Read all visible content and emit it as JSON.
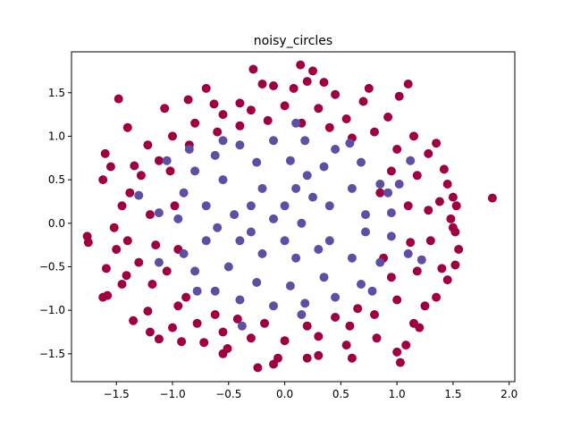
{
  "chart_data": {
    "type": "scatter",
    "title": "noisy_circles",
    "xlabel": "",
    "ylabel": "",
    "xlim": [
      -1.9,
      2.05
    ],
    "ylim": [
      -1.82,
      1.97
    ],
    "xticks": [
      -1.5,
      -1.0,
      -0.5,
      0.0,
      0.5,
      1.0,
      1.5,
      2.0
    ],
    "xtick_labels": [
      "−1.5",
      "−1.0",
      "−0.5",
      "0.0",
      "0.5",
      "1.0",
      "1.5",
      "2.0"
    ],
    "yticks": [
      -1.5,
      -1.0,
      -0.5,
      0.0,
      0.5,
      1.0,
      1.5
    ],
    "ytick_labels": [
      "−1.5",
      "−1.0",
      "−0.5",
      "0.0",
      "0.5",
      "1.0",
      "1.5"
    ],
    "grid": false,
    "legend": "none",
    "colors": {
      "outer": "#9e0142",
      "inner": "#5e4fa2"
    },
    "series": [
      {
        "class": "outer",
        "color": "#9e0142",
        "values": [
          [
            1.85,
            0.29
          ],
          [
            -1.76,
            -0.15
          ],
          [
            -1.75,
            -0.22
          ],
          [
            -1.62,
            0.5
          ],
          [
            -1.59,
            -0.52
          ],
          [
            -1.58,
            -0.83
          ],
          [
            -1.48,
            1.43
          ],
          [
            -1.41,
            -0.6
          ],
          [
            -1.34,
            0.66
          ],
          [
            -1.35,
            -1.12
          ],
          [
            -1.22,
            0.9
          ],
          [
            -1.22,
            -1.01
          ],
          [
            -1.12,
            -1.33
          ],
          [
            -1.07,
            1.32
          ],
          [
            -0.92,
            -1.36
          ],
          [
            -0.86,
            1.42
          ],
          [
            -0.72,
            -1.37
          ],
          [
            -0.63,
            1.37
          ],
          [
            -0.51,
            -1.44
          ],
          [
            -0.4,
            1.38
          ],
          [
            -0.28,
            1.77
          ],
          [
            -0.24,
            -1.66
          ],
          [
            -0.1,
            1.58
          ],
          [
            -0.06,
            -1.55
          ],
          [
            0.08,
            1.55
          ],
          [
            0.14,
            1.82
          ],
          [
            0.2,
            1.63
          ],
          [
            0.3,
            -1.52
          ],
          [
            0.45,
            1.48
          ],
          [
            0.55,
            -1.4
          ],
          [
            0.7,
            1.4
          ],
          [
            0.82,
            -1.32
          ],
          [
            0.92,
            1.22
          ],
          [
            1.0,
            -1.48
          ],
          [
            1.02,
            1.46
          ],
          [
            1.08,
            -1.4
          ],
          [
            1.1,
            1.6
          ],
          [
            1.03,
            -1.6
          ],
          [
            1.15,
            1.0
          ],
          [
            1.2,
            -1.2
          ],
          [
            1.28,
            0.8
          ],
          [
            1.35,
            -0.85
          ],
          [
            1.42,
            0.62
          ],
          [
            1.45,
            0.45
          ],
          [
            1.5,
            0.3
          ],
          [
            1.53,
            0.2
          ],
          [
            1.52,
            -0.1
          ],
          [
            1.55,
            -0.3
          ],
          [
            1.52,
            -0.48
          ],
          [
            1.48,
            0.05
          ],
          [
            1.4,
            -0.52
          ],
          [
            1.38,
            0.25
          ],
          [
            -1.5,
            -0.3
          ],
          [
            -1.45,
            0.2
          ],
          [
            -1.52,
            -0.05
          ],
          [
            -1.38,
            0.35
          ],
          [
            -1.4,
            -0.2
          ],
          [
            -1.3,
            -0.45
          ],
          [
            -1.28,
            0.55
          ],
          [
            -1.12,
            0.72
          ],
          [
            -1.18,
            -0.7
          ],
          [
            -1.0,
            1.0
          ],
          [
            -0.95,
            -0.95
          ],
          [
            -0.8,
            1.15
          ],
          [
            -0.78,
            -1.15
          ],
          [
            -0.55,
            1.25
          ],
          [
            -0.55,
            -1.25
          ],
          [
            -0.3,
            1.3
          ],
          [
            -0.3,
            -1.32
          ],
          [
            0.0,
            1.35
          ],
          [
            0.0,
            -1.35
          ],
          [
            0.3,
            1.32
          ],
          [
            0.3,
            -1.3
          ],
          [
            0.55,
            1.2
          ],
          [
            0.58,
            -1.18
          ],
          [
            0.8,
            1.05
          ],
          [
            0.8,
            -1.05
          ],
          [
            1.0,
            0.85
          ],
          [
            1.0,
            -0.88
          ],
          [
            1.18,
            0.55
          ],
          [
            1.18,
            -0.55
          ],
          [
            1.28,
            0.15
          ],
          [
            1.3,
            -0.2
          ],
          [
            -1.2,
            0.1
          ],
          [
            -1.15,
            -0.25
          ],
          [
            -1.02,
            0.6
          ],
          [
            -1.05,
            -0.55
          ],
          [
            -0.85,
            0.9
          ],
          [
            -0.88,
            -0.85
          ],
          [
            -0.6,
            1.05
          ],
          [
            -0.62,
            -1.05
          ],
          [
            -0.15,
            1.18
          ],
          [
            -0.18,
            -1.15
          ],
          [
            0.15,
            1.15
          ],
          [
            0.2,
            -1.18
          ],
          [
            0.6,
            0.98
          ],
          [
            0.65,
            -0.98
          ],
          [
            0.95,
            0.6
          ],
          [
            0.95,
            -0.62
          ],
          [
            1.1,
            0.2
          ],
          [
            1.12,
            -0.22
          ],
          [
            -0.98,
            0.2
          ],
          [
            -0.95,
            -0.3
          ],
          [
            0.85,
            0.35
          ],
          [
            0.88,
            -0.4
          ],
          [
            -0.4,
            1.12
          ],
          [
            0.4,
            1.1
          ],
          [
            -0.42,
            -1.1
          ],
          [
            0.45,
            -1.08
          ],
          [
            -1.4,
            1.1
          ],
          [
            -1.6,
            0.8
          ],
          [
            -1.55,
            0.65
          ],
          [
            -1.62,
            -0.85
          ],
          [
            -1.45,
            -0.7
          ],
          [
            1.5,
            -0.05
          ],
          [
            1.45,
            -0.65
          ],
          [
            1.25,
            -0.95
          ],
          [
            1.35,
            0.92
          ],
          [
            0.75,
            1.55
          ],
          [
            -0.7,
            1.55
          ],
          [
            -0.2,
            1.6
          ],
          [
            0.25,
            1.75
          ],
          [
            0.35,
            1.62
          ],
          [
            -0.1,
            -1.62
          ],
          [
            0.2,
            -1.55
          ],
          [
            0.6,
            -1.55
          ],
          [
            -0.55,
            -1.5
          ],
          [
            -1.0,
            -1.2
          ],
          [
            -1.2,
            -1.25
          ],
          [
            1.15,
            -1.15
          ]
        ]
      },
      {
        "class": "inner",
        "color": "#5e4fa2",
        "values": [
          [
            -0.95,
            0.05
          ],
          [
            -0.9,
            0.35
          ],
          [
            -0.9,
            -0.35
          ],
          [
            -0.8,
            0.6
          ],
          [
            -0.8,
            -0.55
          ],
          [
            -0.62,
            0.78
          ],
          [
            -0.62,
            -0.78
          ],
          [
            -0.4,
            0.9
          ],
          [
            -0.4,
            -0.88
          ],
          [
            -0.1,
            0.95
          ],
          [
            -0.1,
            -0.95
          ],
          [
            0.18,
            0.95
          ],
          [
            0.18,
            -0.92
          ],
          [
            0.45,
            0.85
          ],
          [
            0.45,
            -0.85
          ],
          [
            0.68,
            0.7
          ],
          [
            0.68,
            -0.7
          ],
          [
            0.85,
            0.45
          ],
          [
            0.85,
            -0.45
          ],
          [
            0.95,
            0.12
          ],
          [
            0.95,
            -0.15
          ],
          [
            -0.7,
            0.2
          ],
          [
            -0.7,
            -0.2
          ],
          [
            -0.55,
            0.5
          ],
          [
            -0.5,
            -0.5
          ],
          [
            -0.25,
            0.7
          ],
          [
            -0.25,
            -0.68
          ],
          [
            0.05,
            0.72
          ],
          [
            0.05,
            -0.72
          ],
          [
            0.35,
            0.65
          ],
          [
            0.35,
            -0.62
          ],
          [
            0.6,
            0.4
          ],
          [
            0.6,
            -0.4
          ],
          [
            0.72,
            0.1
          ],
          [
            0.72,
            -0.1
          ],
          [
            -0.45,
            0.1
          ],
          [
            -0.4,
            -0.2
          ],
          [
            -0.2,
            0.4
          ],
          [
            -0.2,
            -0.35
          ],
          [
            0.1,
            0.4
          ],
          [
            0.1,
            -0.4
          ],
          [
            0.4,
            0.2
          ],
          [
            0.4,
            -0.2
          ],
          [
            -0.1,
            0.05
          ],
          [
            0.15,
            0.0
          ],
          [
            0.0,
            0.2
          ],
          [
            0.0,
            -0.2
          ],
          [
            -1.3,
            0.32
          ],
          [
            -1.12,
            -0.45
          ],
          [
            -1.05,
            0.72
          ],
          [
            -0.55,
            0.95
          ],
          [
            -0.38,
            -1.18
          ],
          [
            0.1,
            1.15
          ],
          [
            0.15,
            -1.05
          ],
          [
            0.58,
            0.92
          ],
          [
            0.78,
            -0.78
          ],
          [
            1.02,
            0.45
          ],
          [
            1.12,
            0.72
          ],
          [
            1.1,
            -0.35
          ],
          [
            1.22,
            -0.42
          ],
          [
            -0.85,
            0.85
          ],
          [
            -0.78,
            -0.78
          ],
          [
            0.92,
            0.35
          ],
          [
            -1.12,
            0.12
          ],
          [
            -0.3,
            0.2
          ],
          [
            0.25,
            0.3
          ],
          [
            0.3,
            -0.3
          ],
          [
            -0.3,
            -0.1
          ],
          [
            0.2,
            0.55
          ],
          [
            -0.6,
            -0.05
          ]
        ]
      }
    ]
  }
}
